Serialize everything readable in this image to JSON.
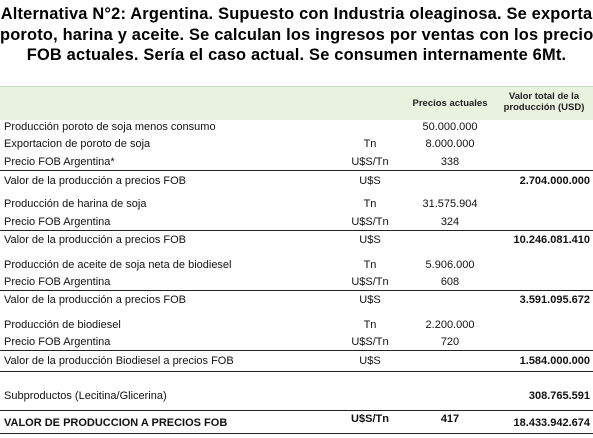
{
  "title": {
    "line1": "Alternativa N°2: Argentina. Supuesto con Industria oleaginosa. Se exporta",
    "line2": "poroto, harina y aceite. Se calculan los ingresos por ventas con los precios",
    "line3": "FOB actuales. Sería el caso actual. Se consumen internamente 6Mt."
  },
  "headers": {
    "prices": "Precios actuales",
    "total": "Valor total de la producción (USD)"
  },
  "rows": [
    {
      "label": "Producción poroto de soja menos consumo",
      "unit": "",
      "price": "50.000.000",
      "total": ""
    },
    {
      "label": "Exportacion de poroto de soja",
      "unit": "Tn",
      "price": "8.000.000",
      "total": ""
    },
    {
      "label": "Precio FOB Argentina*",
      "unit": "U$S/Tn",
      "price": "338",
      "total": ""
    },
    {
      "label": "Valor de la producción a precios FOB",
      "unit": "U$S",
      "price": "",
      "total": "2.704.000.000"
    },
    {
      "label": "Producción de harina de soja",
      "unit": "Tn",
      "price": "31.575.904",
      "total": ""
    },
    {
      "label": "Precio FOB Argentina",
      "unit": "U$S/Tn",
      "price": "324",
      "total": ""
    },
    {
      "label": "Valor de la producción a precios FOB",
      "unit": "U$S",
      "price": "",
      "total": "10.246.081.410"
    },
    {
      "label": "Producción de aceite de soja neta de biodiesel",
      "unit": "Tn",
      "price": "5.906.000",
      "total": ""
    },
    {
      "label": "Precio FOB Argentina",
      "unit": "U$S/Tn",
      "price": "608",
      "total": ""
    },
    {
      "label": "Valor de la producción a precios FOB",
      "unit": "U$S",
      "price": "",
      "total": "3.591.095.672"
    },
    {
      "label": "Producción de biodiesel",
      "unit": "Tn",
      "price": "2.200.000",
      "total": ""
    },
    {
      "label": "Precio FOB Argentina",
      "unit": "U$S/Tn",
      "price": "720",
      "total": ""
    },
    {
      "label": "Valor de la producción Biodiesel a precios FOB",
      "unit": "U$S",
      "price": "",
      "total": "1.584.000.000"
    },
    {
      "label": "Subproductos (Lecitina/Glicerina)",
      "unit": "",
      "price": "",
      "total": "308.765.591"
    },
    {
      "label": "VALOR DE PRODUCCION A PRECIOS FOB",
      "unit": "U$S/Tn",
      "price": "417",
      "total": "18.433.942.674"
    }
  ]
}
